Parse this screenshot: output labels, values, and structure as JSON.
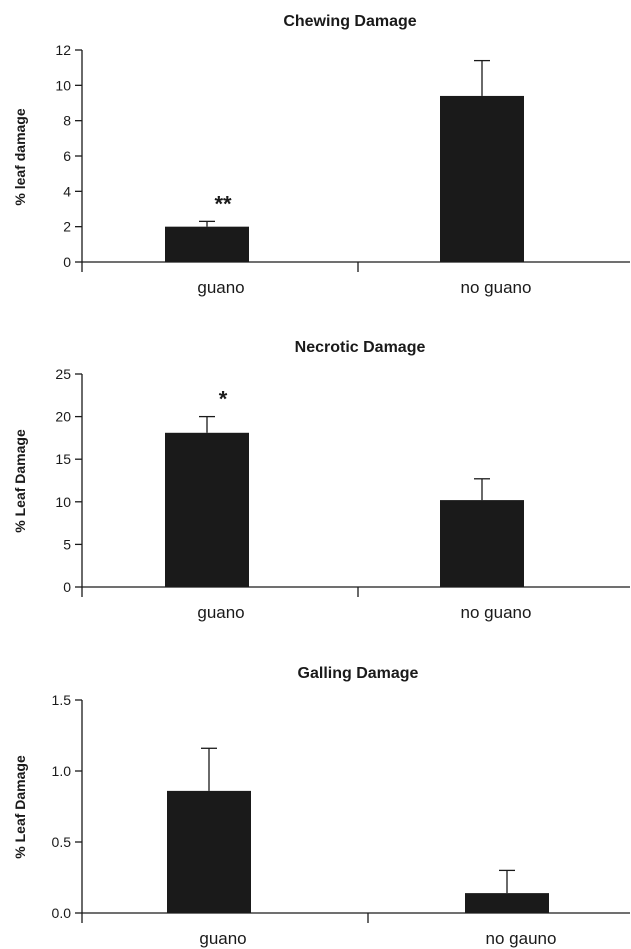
{
  "chart_data": [
    {
      "type": "bar",
      "title": "Chewing Damage",
      "ylabel": "% leaf damage",
      "categories": [
        "guano",
        "no guano"
      ],
      "values": [
        2.0,
        9.4
      ],
      "errors": [
        0.3,
        2.0
      ],
      "annotations": [
        "**",
        ""
      ],
      "ylim": [
        0,
        12
      ],
      "yticks": [
        "0",
        "2",
        "4",
        "6",
        "8",
        "10",
        "12"
      ],
      "grid": false,
      "legend": "none"
    },
    {
      "type": "bar",
      "title": "Necrotic Damage",
      "ylabel": "% Leaf Damage",
      "categories": [
        "guano",
        "no guano"
      ],
      "values": [
        18.1,
        10.2
      ],
      "errors": [
        1.9,
        2.5
      ],
      "annotations": [
        "*",
        ""
      ],
      "ylim": [
        0,
        25
      ],
      "yticks": [
        "0",
        "5",
        "10",
        "15",
        "20",
        "25"
      ],
      "grid": false,
      "legend": "none"
    },
    {
      "type": "bar",
      "title": "Galling Damage",
      "ylabel": "% Leaf Damage",
      "categories": [
        "guano",
        "no gauno"
      ],
      "values": [
        0.86,
        0.14
      ],
      "errors": [
        0.3,
        0.16
      ],
      "annotations": [
        "",
        ""
      ],
      "ylim": [
        0,
        1.5
      ],
      "yticks": [
        "0.0",
        "0.5",
        "1.0",
        "1.5"
      ],
      "grid": false,
      "legend": "none"
    }
  ]
}
